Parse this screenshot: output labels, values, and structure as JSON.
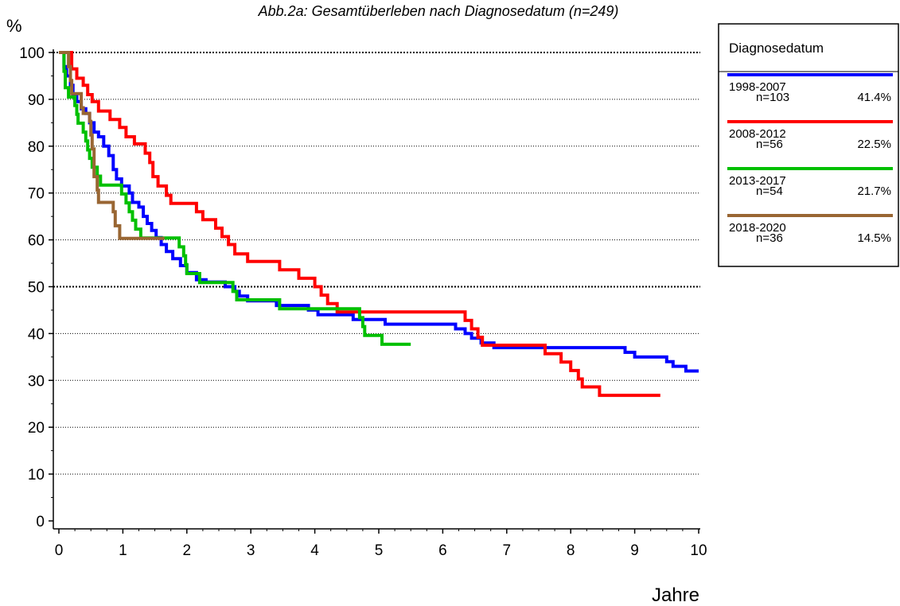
{
  "chart_data": {
    "type": "line",
    "step": true,
    "title": "Abb.2a: Gesamtüberleben nach Diagnosedatum (n=249)",
    "ylabel": "%",
    "xlabel": "Jahre",
    "xlim": [
      0,
      10
    ],
    "ylim": [
      0,
      100
    ],
    "xticks": [
      "0",
      "1",
      "2",
      "3",
      "4",
      "5",
      "6",
      "7",
      "8",
      "9",
      "10"
    ],
    "yticks": [
      "0",
      "10",
      "20",
      "30",
      "40",
      "50",
      "60",
      "70",
      "80",
      "90",
      "100"
    ],
    "grid": "horizontal dotted",
    "legend": {
      "title": "Diagnosedatum",
      "placement": "right-top"
    },
    "series": [
      {
        "name": "1998-2007",
        "n": "n=103",
        "pct": "41.4%",
        "color": "#0000ff",
        "points": [
          [
            0,
            100
          ],
          [
            0.08,
            97
          ],
          [
            0.12,
            95
          ],
          [
            0.18,
            93
          ],
          [
            0.22,
            91
          ],
          [
            0.28,
            89.5
          ],
          [
            0.35,
            88
          ],
          [
            0.42,
            87
          ],
          [
            0.48,
            85
          ],
          [
            0.55,
            83
          ],
          [
            0.62,
            82
          ],
          [
            0.7,
            80
          ],
          [
            0.78,
            78
          ],
          [
            0.85,
            75
          ],
          [
            0.9,
            73
          ],
          [
            0.98,
            71.5
          ],
          [
            1.1,
            70
          ],
          [
            1.15,
            68
          ],
          [
            1.25,
            67
          ],
          [
            1.32,
            65
          ],
          [
            1.38,
            63.5
          ],
          [
            1.45,
            62
          ],
          [
            1.52,
            60.5
          ],
          [
            1.6,
            59
          ],
          [
            1.68,
            57.5
          ],
          [
            1.78,
            56
          ],
          [
            1.9,
            54.5
          ],
          [
            2.0,
            53
          ],
          [
            2.15,
            51.5
          ],
          [
            2.3,
            51
          ],
          [
            2.6,
            50
          ],
          [
            2.75,
            49
          ],
          [
            2.82,
            48
          ],
          [
            2.95,
            47
          ],
          [
            3.4,
            46
          ],
          [
            3.9,
            45
          ],
          [
            4.05,
            44
          ],
          [
            4.5,
            44
          ],
          [
            4.6,
            43
          ],
          [
            5.1,
            42
          ],
          [
            6.2,
            41
          ],
          [
            6.35,
            40
          ],
          [
            6.45,
            39
          ],
          [
            6.6,
            38
          ],
          [
            6.8,
            37
          ],
          [
            8.85,
            36
          ],
          [
            9.0,
            35
          ],
          [
            9.5,
            34
          ],
          [
            9.6,
            33
          ],
          [
            9.8,
            32
          ],
          [
            10.0,
            32
          ]
        ]
      },
      {
        "name": "2008-2012",
        "n": "n=56",
        "pct": "22.5%",
        "color": "#ff0000",
        "points": [
          [
            0,
            100
          ],
          [
            0.2,
            96.5
          ],
          [
            0.28,
            94.5
          ],
          [
            0.38,
            93
          ],
          [
            0.45,
            91
          ],
          [
            0.52,
            89.5
          ],
          [
            0.62,
            87.5
          ],
          [
            0.8,
            85.7
          ],
          [
            0.95,
            84
          ],
          [
            1.05,
            82
          ],
          [
            1.18,
            80.5
          ],
          [
            1.35,
            78.5
          ],
          [
            1.42,
            76.5
          ],
          [
            1.47,
            73.5
          ],
          [
            1.55,
            71.5
          ],
          [
            1.68,
            69.5
          ],
          [
            1.75,
            67.8
          ],
          [
            2.15,
            66
          ],
          [
            2.25,
            64.3
          ],
          [
            2.45,
            62.5
          ],
          [
            2.55,
            60.7
          ],
          [
            2.65,
            59
          ],
          [
            2.75,
            57
          ],
          [
            2.95,
            55.4
          ],
          [
            3.45,
            53.6
          ],
          [
            3.75,
            51.8
          ],
          [
            4.0,
            50
          ],
          [
            4.1,
            48.2
          ],
          [
            4.2,
            46.4
          ],
          [
            4.35,
            44.6
          ],
          [
            6.35,
            42.8
          ],
          [
            6.45,
            41
          ],
          [
            6.55,
            39.2
          ],
          [
            6.62,
            37.5
          ],
          [
            7.6,
            35.7
          ],
          [
            7.85,
            33.9
          ],
          [
            8.0,
            32.1
          ],
          [
            8.12,
            30.3
          ],
          [
            8.18,
            28.6
          ],
          [
            8.45,
            26.8
          ],
          [
            9.4,
            26.8
          ]
        ]
      },
      {
        "name": "2013-2017",
        "n": "n=54",
        "pct": "21.7%",
        "color": "#00c000",
        "points": [
          [
            0,
            100
          ],
          [
            0.08,
            96
          ],
          [
            0.1,
            92.5
          ],
          [
            0.15,
            90.5
          ],
          [
            0.25,
            88.7
          ],
          [
            0.28,
            86.8
          ],
          [
            0.3,
            84.9
          ],
          [
            0.38,
            83
          ],
          [
            0.42,
            81.1
          ],
          [
            0.45,
            79.2
          ],
          [
            0.48,
            77.4
          ],
          [
            0.52,
            75.5
          ],
          [
            0.6,
            73.6
          ],
          [
            0.65,
            71.7
          ],
          [
            0.98,
            69.8
          ],
          [
            1.05,
            67.9
          ],
          [
            1.1,
            66
          ],
          [
            1.15,
            64.2
          ],
          [
            1.2,
            62.3
          ],
          [
            1.28,
            60.4
          ],
          [
            1.88,
            58.5
          ],
          [
            1.95,
            56.6
          ],
          [
            1.98,
            54.7
          ],
          [
            2.0,
            52.8
          ],
          [
            2.2,
            50.9
          ],
          [
            2.72,
            49
          ],
          [
            2.78,
            47.2
          ],
          [
            3.45,
            45.3
          ],
          [
            4.7,
            43.4
          ],
          [
            4.75,
            41.5
          ],
          [
            4.78,
            39.6
          ],
          [
            5.05,
            37.7
          ],
          [
            5.5,
            37.7
          ]
        ]
      },
      {
        "name": "2018-2020",
        "n": "n=36",
        "pct": "14.5%",
        "color": "#996633",
        "points": [
          [
            0,
            100
          ],
          [
            0.15,
            97
          ],
          [
            0.18,
            94
          ],
          [
            0.2,
            91.2
          ],
          [
            0.35,
            88.2
          ],
          [
            0.38,
            87
          ],
          [
            0.48,
            85.3
          ],
          [
            0.5,
            82.4
          ],
          [
            0.52,
            79.4
          ],
          [
            0.55,
            73.5
          ],
          [
            0.6,
            70.6
          ],
          [
            0.62,
            68
          ],
          [
            0.85,
            66
          ],
          [
            0.88,
            63
          ],
          [
            0.95,
            60.3
          ],
          [
            1.65,
            60.3
          ]
        ]
      }
    ]
  }
}
